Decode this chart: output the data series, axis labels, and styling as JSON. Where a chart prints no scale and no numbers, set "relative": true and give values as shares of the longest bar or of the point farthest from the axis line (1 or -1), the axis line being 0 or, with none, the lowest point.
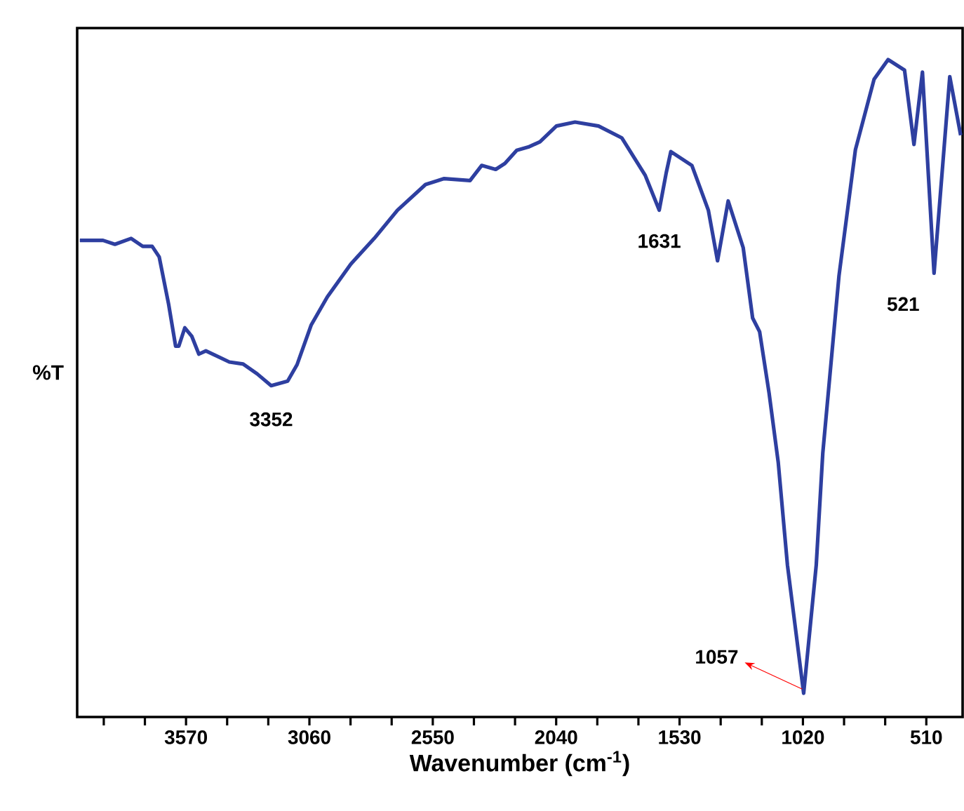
{
  "chart_data": {
    "type": "line",
    "xlabel": "Wavenumber (cm$^{-1}$)",
    "ylabel": "%T",
    "relative": true,
    "color": "#2e3fa0",
    "xlim": [
      4020,
      360
    ],
    "xticks": [
      {
        "value": 3910,
        "label": null
      },
      {
        "value": 3740,
        "label": null
      },
      3570,
      {
        "value": 3400,
        "label": null
      },
      {
        "value": 3230,
        "label": null
      },
      3060,
      {
        "value": 2890,
        "label": null
      },
      {
        "value": 2720,
        "label": null
      },
      2550,
      {
        "value": 2380,
        "label": null
      },
      {
        "value": 2210,
        "label": null
      },
      2040,
      {
        "value": 1870,
        "label": null
      },
      {
        "value": 1700,
        "label": null
      },
      1530,
      {
        "value": 1360,
        "label": null
      },
      {
        "value": 1190,
        "label": null
      },
      1020,
      {
        "value": 850,
        "label": null
      },
      {
        "value": 680,
        "label": null
      },
      510
    ],
    "x": [
      4009,
      3913,
      3864,
      3797,
      3749,
      3710,
      3681,
      3642,
      3613,
      3600,
      3575,
      3546,
      3517,
      3488,
      3391,
      3334,
      3276,
      3218,
      3150,
      3111,
      3053,
      2986,
      2889,
      2792,
      2696,
      2580,
      2503,
      2396,
      2348,
      2290,
      2252,
      2203,
      2155,
      2107,
      2039,
      1962,
      1865,
      1769,
      1672,
      1614,
      1585,
      1566,
      1479,
      1411,
      1373,
      1329,
      1267,
      1228,
      1199,
      1160,
      1122,
      1084,
      1017,
      965,
      938,
      871,
      803,
      726,
      668,
      600,
      561,
      526,
      478,
      413,
      368
    ],
    "values": [
      0.725,
      0.725,
      0.719,
      0.728,
      0.716,
      0.716,
      0.7,
      0.628,
      0.564,
      0.564,
      0.592,
      0.579,
      0.552,
      0.557,
      0.54,
      0.537,
      0.522,
      0.504,
      0.511,
      0.536,
      0.596,
      0.639,
      0.689,
      0.728,
      0.771,
      0.81,
      0.819,
      0.816,
      0.839,
      0.833,
      0.842,
      0.862,
      0.867,
      0.875,
      0.899,
      0.905,
      0.899,
      0.881,
      0.824,
      0.771,
      0.828,
      0.86,
      0.839,
      0.771,
      0.694,
      0.785,
      0.714,
      0.607,
      0.586,
      0.493,
      0.387,
      0.231,
      0.036,
      0.231,
      0.401,
      0.671,
      0.863,
      0.97,
      1.0,
      0.984,
      0.871,
      0.981,
      0.675,
      0.974,
      0.885
    ],
    "annotations": [
      {
        "text": "3352",
        "x": 3218,
        "y": 0.504
      },
      {
        "text": "1631",
        "x": 1614,
        "y": 0.771
      },
      {
        "text": "521",
        "x": 478,
        "y": 0.675
      },
      {
        "text": "1057",
        "x": 1017,
        "y": 0.036
      }
    ]
  }
}
